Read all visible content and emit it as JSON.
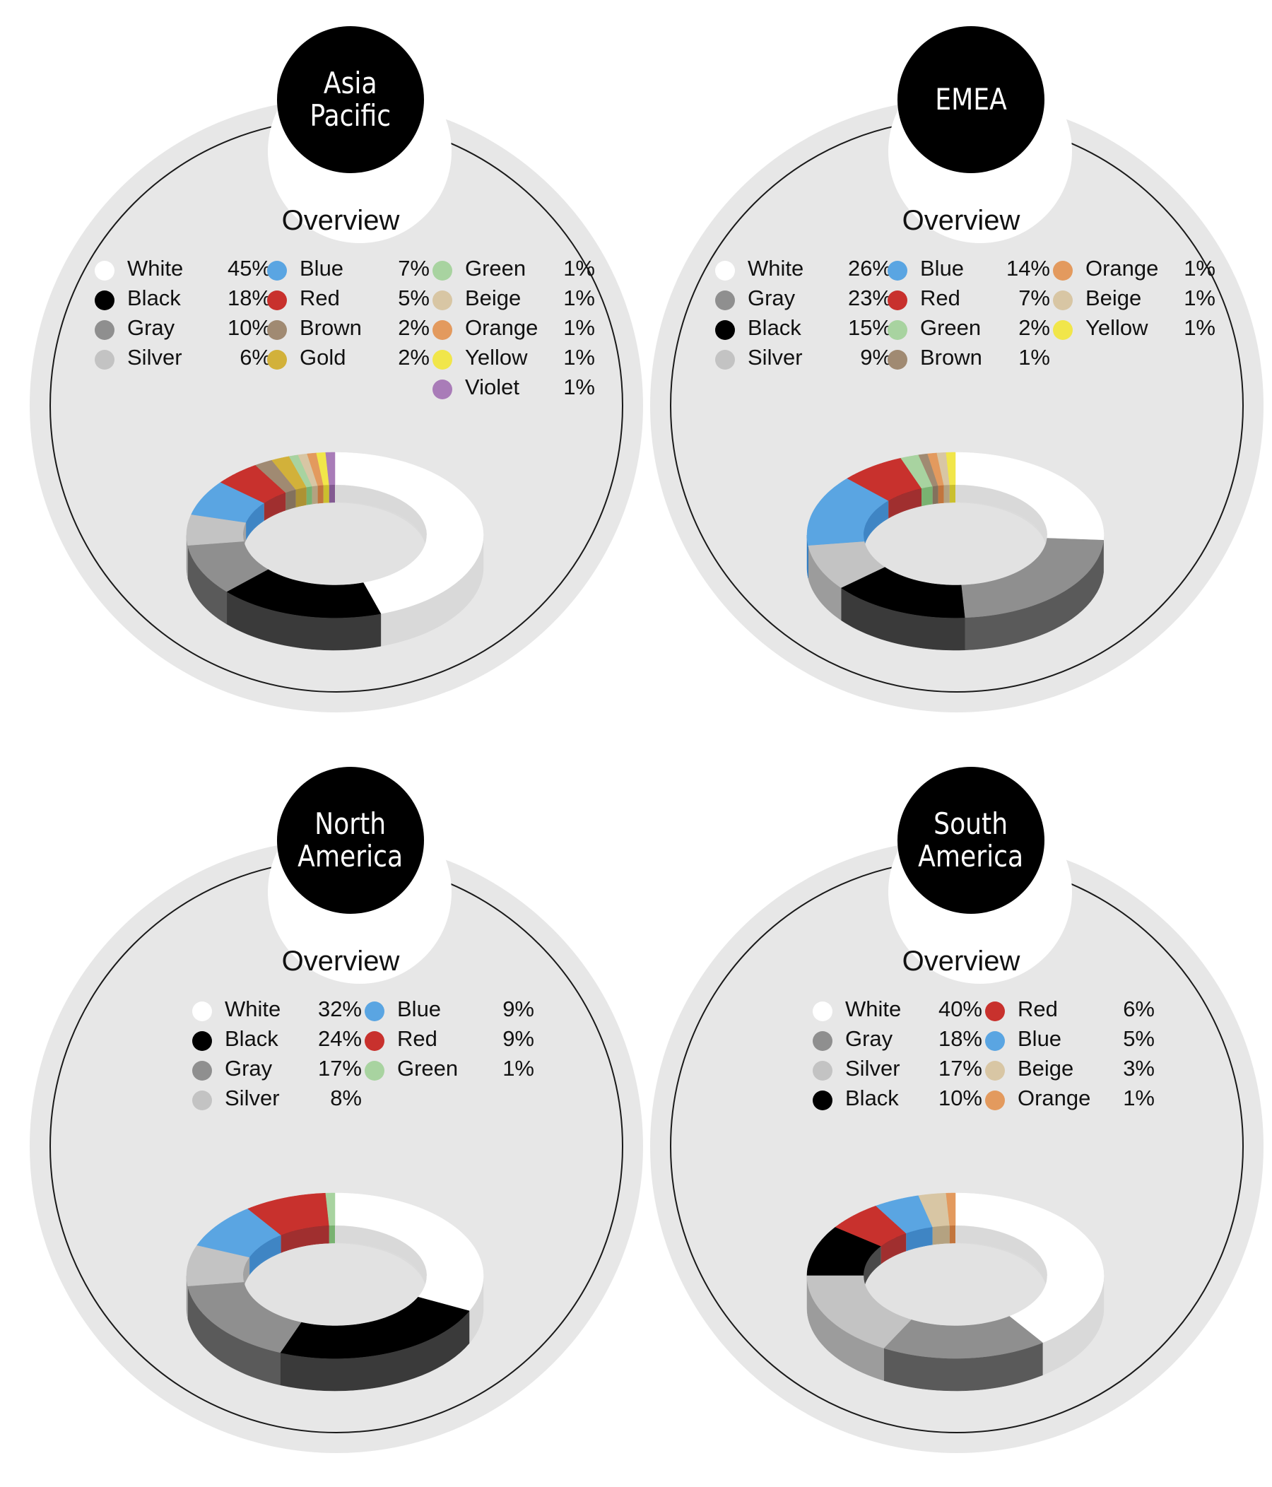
{
  "chart_data": [
    {
      "type": "pie",
      "title": "Asia\nPacific",
      "subtitle": "Overview",
      "legend_columns": 3,
      "series": [
        {
          "name": "White",
          "value": 45,
          "label": "45%",
          "color": "#ffffff",
          "side": "#d9d9d9"
        },
        {
          "name": "Black",
          "value": 18,
          "label": "18%",
          "color": "#000000",
          "side": "#3a3a3a"
        },
        {
          "name": "Gray",
          "value": 10,
          "label": "10%",
          "color": "#8f8f8f",
          "side": "#5a5a5a"
        },
        {
          "name": "Silver",
          "value": 6,
          "label": "6%",
          "color": "#c3c3c3",
          "side": "#9c9c9c"
        },
        {
          "name": "Blue",
          "value": 7,
          "label": "7%",
          "color": "#5aa5e2",
          "side": "#2f7cc2"
        },
        {
          "name": "Red",
          "value": 5,
          "label": "5%",
          "color": "#c8312d",
          "side": "#9a1d1d"
        },
        {
          "name": "Brown",
          "value": 2,
          "label": "2%",
          "color": "#a08a72",
          "side": "#7a6650"
        },
        {
          "name": "Gold",
          "value": 2,
          "label": "2%",
          "color": "#d2b13a",
          "side": "#a88b22"
        },
        {
          "name": "Green",
          "value": 1,
          "label": "1%",
          "color": "#a8d3a0",
          "side": "#6fae66"
        },
        {
          "name": "Beige",
          "value": 1,
          "label": "1%",
          "color": "#d8c6a4",
          "side": "#b09c78"
        },
        {
          "name": "Orange",
          "value": 1,
          "label": "1%",
          "color": "#e39a5e",
          "side": "#c06a2c"
        },
        {
          "name": "Yellow",
          "value": 1,
          "label": "1%",
          "color": "#f1e64a",
          "side": "#c9bd1c"
        },
        {
          "name": "Violet",
          "value": 1,
          "label": "1%",
          "color": "#a97cb8",
          "side": "#7a4d8a"
        }
      ]
    },
    {
      "type": "pie",
      "title": "EMEA",
      "subtitle": "Overview",
      "legend_columns": 3,
      "series": [
        {
          "name": "White",
          "value": 26,
          "label": "26%",
          "color": "#ffffff",
          "side": "#d9d9d9"
        },
        {
          "name": "Gray",
          "value": 23,
          "label": "23%",
          "color": "#8f8f8f",
          "side": "#5a5a5a"
        },
        {
          "name": "Black",
          "value": 15,
          "label": "15%",
          "color": "#000000",
          "side": "#3a3a3a"
        },
        {
          "name": "Silver",
          "value": 9,
          "label": "9%",
          "color": "#c3c3c3",
          "side": "#9c9c9c"
        },
        {
          "name": "Blue",
          "value": 14,
          "label": "14%",
          "color": "#5aa5e2",
          "side": "#2f7cc2"
        },
        {
          "name": "Red",
          "value": 7,
          "label": "7%",
          "color": "#c8312d",
          "side": "#9a1d1d"
        },
        {
          "name": "Green",
          "value": 2,
          "label": "2%",
          "color": "#a8d3a0",
          "side": "#6fae66"
        },
        {
          "name": "Brown",
          "value": 1,
          "label": "1%",
          "color": "#a08a72",
          "side": "#7a6650"
        },
        {
          "name": "Orange",
          "value": 1,
          "label": "1%",
          "color": "#e39a5e",
          "side": "#c06a2c"
        },
        {
          "name": "Beige",
          "value": 1,
          "label": "1%",
          "color": "#d8c6a4",
          "side": "#b09c78"
        },
        {
          "name": "Yellow",
          "value": 1,
          "label": "1%",
          "color": "#f1e64a",
          "side": "#c9bd1c"
        }
      ]
    },
    {
      "type": "pie",
      "title": "North\nAmerica",
      "subtitle": "Overview",
      "legend_columns": 2,
      "series": [
        {
          "name": "White",
          "value": 32,
          "label": "32%",
          "color": "#ffffff",
          "side": "#d9d9d9"
        },
        {
          "name": "Black",
          "value": 24,
          "label": "24%",
          "color": "#000000",
          "side": "#3a3a3a"
        },
        {
          "name": "Gray",
          "value": 17,
          "label": "17%",
          "color": "#8f8f8f",
          "side": "#5a5a5a"
        },
        {
          "name": "Silver",
          "value": 8,
          "label": "8%",
          "color": "#c3c3c3",
          "side": "#9c9c9c"
        },
        {
          "name": "Blue",
          "value": 9,
          "label": "9%",
          "color": "#5aa5e2",
          "side": "#2f7cc2"
        },
        {
          "name": "Red",
          "value": 9,
          "label": "9%",
          "color": "#c8312d",
          "side": "#9a1d1d"
        },
        {
          "name": "Green",
          "value": 1,
          "label": "1%",
          "color": "#a8d3a0",
          "side": "#6fae66"
        }
      ]
    },
    {
      "type": "pie",
      "title": "South\nAmerica",
      "subtitle": "Overview",
      "legend_columns": 2,
      "series": [
        {
          "name": "White",
          "value": 40,
          "label": "40%",
          "color": "#ffffff",
          "side": "#d9d9d9"
        },
        {
          "name": "Gray",
          "value": 18,
          "label": "18%",
          "color": "#8f8f8f",
          "side": "#5a5a5a"
        },
        {
          "name": "Silver",
          "value": 17,
          "label": "17%",
          "color": "#c3c3c3",
          "side": "#9c9c9c"
        },
        {
          "name": "Black",
          "value": 10,
          "label": "10%",
          "color": "#000000",
          "side": "#3a3a3a"
        },
        {
          "name": "Red",
          "value": 6,
          "label": "6%",
          "color": "#c8312d",
          "side": "#9a1d1d"
        },
        {
          "name": "Blue",
          "value": 5,
          "label": "5%",
          "color": "#5aa5e2",
          "side": "#2f7cc2"
        },
        {
          "name": "Beige",
          "value": 3,
          "label": "3%",
          "color": "#d8c6a4",
          "side": "#b09c78"
        },
        {
          "name": "Orange",
          "value": 1,
          "label": "1%",
          "color": "#e39a5e",
          "side": "#c06a2c"
        }
      ]
    }
  ]
}
